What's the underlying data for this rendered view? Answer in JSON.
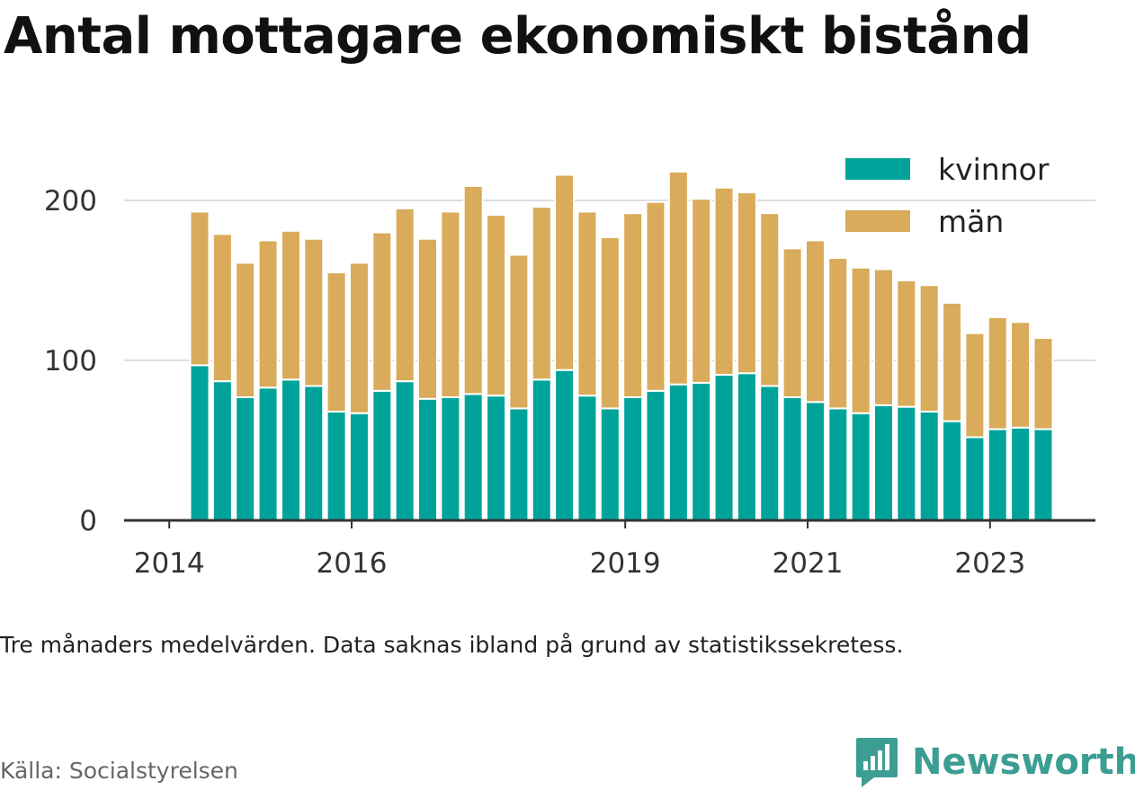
{
  "title": "Antal mottagare ekonomiskt bistånd",
  "note": "Tre månaders medelvärden. Data saknas ibland på grund av statistikssekretess.",
  "source": "Källa: Socialstyrelsen",
  "brand": {
    "name": "Newsworthy",
    "icon": "newsworthy-logo-icon",
    "color": "#3c9e92"
  },
  "chart_data": {
    "type": "bar",
    "stacked": true,
    "x_axis": {
      "ticks": [
        "2014",
        "2016",
        "2019",
        "2021",
        "2023"
      ]
    },
    "y_axis": {
      "ticks": [
        0,
        100,
        200
      ],
      "ylim": [
        0,
        230
      ]
    },
    "grid": true,
    "legend_position": "top-right",
    "categories": [
      "2014-05",
      "2014-08",
      "2014-11",
      "2015-02",
      "2015-05",
      "2015-08",
      "2015-11",
      "2016-02",
      "2016-05",
      "2016-08",
      "2016-11",
      "2017-02",
      "2017-05",
      "2017-08",
      "2017-11",
      "2018-02",
      "2018-05",
      "2018-08",
      "2018-11",
      "2019-02",
      "2019-05",
      "2019-08",
      "2019-11",
      "2020-02",
      "2020-05",
      "2020-08",
      "2020-11",
      "2021-02",
      "2021-05",
      "2021-08",
      "2021-11",
      "2022-02",
      "2022-05",
      "2022-08",
      "2022-11",
      "2023-02",
      "2023-05",
      "2023-08"
    ],
    "series": [
      {
        "name": "kvinnor",
        "color": "#00a39a",
        "values": [
          97,
          87,
          77,
          83,
          88,
          84,
          68,
          67,
          81,
          87,
          76,
          77,
          79,
          78,
          70,
          88,
          94,
          78,
          70,
          77,
          81,
          85,
          86,
          91,
          92,
          84,
          77,
          74,
          70,
          67,
          72,
          71,
          68,
          62,
          52,
          57,
          58,
          57
        ]
      },
      {
        "name": "män",
        "color": "#d9ab5a",
        "values": [
          96,
          92,
          84,
          92,
          93,
          92,
          87,
          94,
          99,
          108,
          100,
          116,
          130,
          113,
          96,
          108,
          122,
          115,
          107,
          115,
          118,
          133,
          115,
          117,
          113,
          108,
          93,
          101,
          94,
          91,
          85,
          79,
          79,
          74,
          65,
          70,
          66,
          57
        ]
      }
    ]
  }
}
